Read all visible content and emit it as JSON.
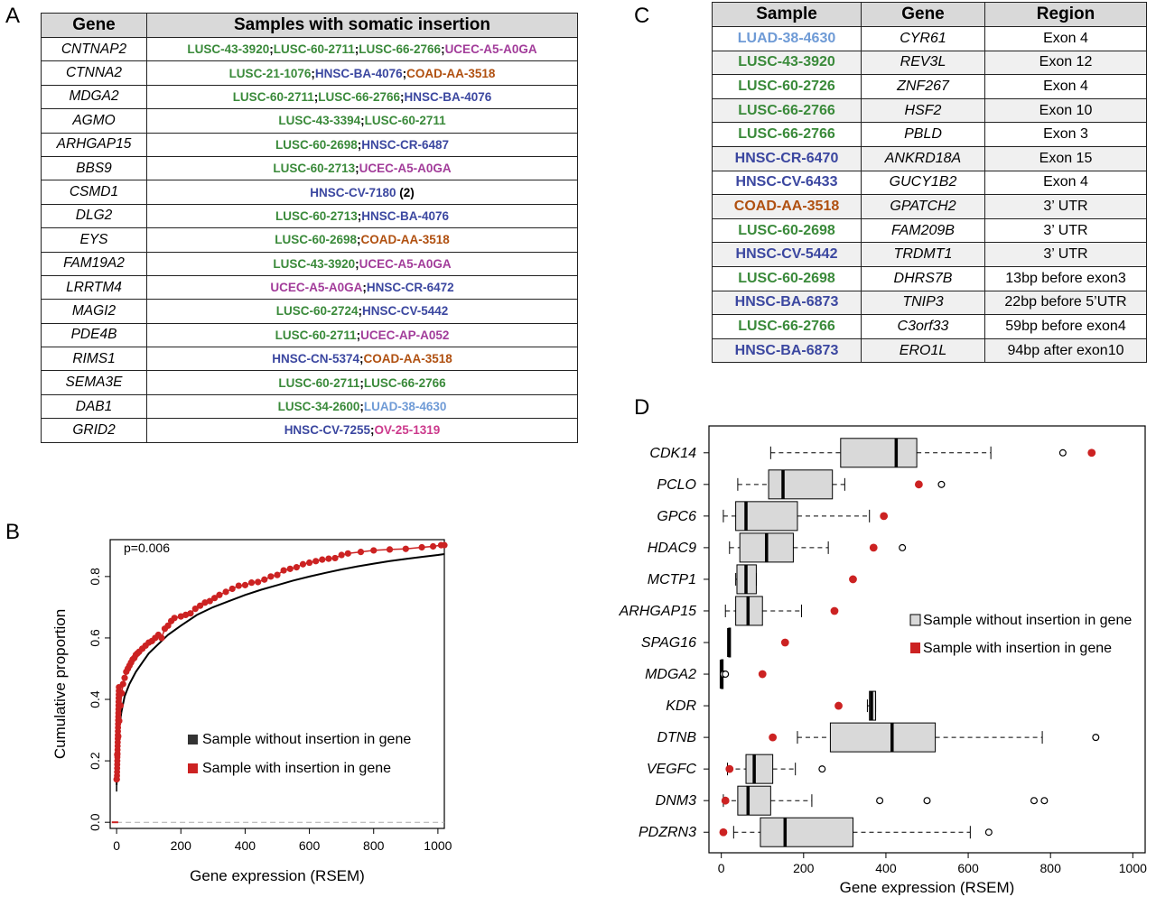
{
  "panel_labels": {
    "a": "A",
    "b": "B",
    "c": "C",
    "d": "D"
  },
  "colors": {
    "lusc": "#3a8a3a",
    "hnsc": "#3b47a0",
    "ucec": "#a23c9a",
    "coad": "#b05010",
    "luad": "#6f9bd6",
    "ov": "#cc3a8c",
    "insertion": "#cc2222",
    "box_fill": "#d9d9d9"
  },
  "table_a": {
    "headers": [
      "Gene",
      "Samples with somatic insertion"
    ],
    "rows": [
      {
        "gene": "CNTNAP2",
        "samples": [
          {
            "t": "LUSC-43-3920",
            "c": "lusc"
          },
          {
            "t": "LUSC-60-2711",
            "c": "lusc"
          },
          {
            "t": "LUSC-66-2766",
            "c": "lusc"
          },
          {
            "t": "UCEC-A5-A0GA",
            "c": "ucec"
          }
        ]
      },
      {
        "gene": "CTNNA2",
        "samples": [
          {
            "t": "LUSC-21-1076",
            "c": "lusc"
          },
          {
            "t": "HNSC-BA-4076",
            "c": "hnsc"
          },
          {
            "t": "COAD-AA-3518",
            "c": "coad"
          }
        ]
      },
      {
        "gene": "MDGA2",
        "samples": [
          {
            "t": "LUSC-60-2711",
            "c": "lusc"
          },
          {
            "t": "LUSC-66-2766",
            "c": "lusc"
          },
          {
            "t": "HNSC-BA-4076",
            "c": "hnsc"
          }
        ]
      },
      {
        "gene": "AGMO",
        "samples": [
          {
            "t": "LUSC-43-3394",
            "c": "lusc"
          },
          {
            "t": "LUSC-60-2711",
            "c": "lusc"
          }
        ]
      },
      {
        "gene": "ARHGAP15",
        "samples": [
          {
            "t": "LUSC-60-2698",
            "c": "lusc"
          },
          {
            "t": "HNSC-CR-6487",
            "c": "hnsc"
          }
        ]
      },
      {
        "gene": "BBS9",
        "samples": [
          {
            "t": "LUSC-60-2713",
            "c": "lusc"
          },
          {
            "t": "UCEC-A5-A0GA",
            "c": "ucec"
          }
        ]
      },
      {
        "gene": "CSMD1",
        "samples": [
          {
            "t": "HNSC-CV-7180",
            "c": "hnsc",
            "suffix": " (2)"
          }
        ]
      },
      {
        "gene": "DLG2",
        "samples": [
          {
            "t": "LUSC-60-2713",
            "c": "lusc"
          },
          {
            "t": "HNSC-BA-4076",
            "c": "hnsc"
          }
        ]
      },
      {
        "gene": "EYS",
        "samples": [
          {
            "t": "LUSC-60-2698",
            "c": "lusc"
          },
          {
            "t": "COAD-AA-3518",
            "c": "coad"
          }
        ]
      },
      {
        "gene": "FAM19A2",
        "samples": [
          {
            "t": "LUSC-43-3920",
            "c": "lusc"
          },
          {
            "t": "UCEC-A5-A0GA",
            "c": "ucec"
          }
        ]
      },
      {
        "gene": "LRRTM4",
        "samples": [
          {
            "t": "UCEC-A5-A0GA",
            "c": "ucec"
          },
          {
            "t": "HNSC-CR-6472",
            "c": "hnsc"
          }
        ]
      },
      {
        "gene": "MAGI2",
        "samples": [
          {
            "t": "LUSC-60-2724",
            "c": "lusc"
          },
          {
            "t": "HNSC-CV-5442",
            "c": "hnsc"
          }
        ]
      },
      {
        "gene": "PDE4B",
        "samples": [
          {
            "t": "LUSC-60-2711",
            "c": "lusc"
          },
          {
            "t": "UCEC-AP-A052",
            "c": "ucec"
          }
        ]
      },
      {
        "gene": "RIMS1",
        "samples": [
          {
            "t": "HNSC-CN-5374",
            "c": "hnsc"
          },
          {
            "t": "COAD-AA-3518",
            "c": "coad"
          }
        ]
      },
      {
        "gene": "SEMA3E",
        "samples": [
          {
            "t": "LUSC-60-2711",
            "c": "lusc"
          },
          {
            "t": "LUSC-66-2766",
            "c": "lusc"
          }
        ]
      },
      {
        "gene": "DAB1",
        "samples": [
          {
            "t": "LUSC-34-2600",
            "c": "lusc"
          },
          {
            "t": "LUAD-38-4630",
            "c": "luad"
          }
        ]
      },
      {
        "gene": "GRID2",
        "samples": [
          {
            "t": "HNSC-CV-7255",
            "c": "hnsc"
          },
          {
            "t": "OV-25-1319",
            "c": "ov"
          }
        ]
      }
    ]
  },
  "table_c": {
    "headers": [
      "Sample",
      "Gene",
      "Region"
    ],
    "rows": [
      {
        "sample": "LUAD-38-4630",
        "c": "luad",
        "gene": "CYR61",
        "region": "Exon 4"
      },
      {
        "sample": "LUSC-43-3920",
        "c": "lusc",
        "gene": "REV3L",
        "region": "Exon 12"
      },
      {
        "sample": "LUSC-60-2726",
        "c": "lusc",
        "gene": "ZNF267",
        "region": "Exon 4"
      },
      {
        "sample": "LUSC-66-2766",
        "c": "lusc",
        "gene": "HSF2",
        "region": "Exon 10"
      },
      {
        "sample": "LUSC-66-2766",
        "c": "lusc",
        "gene": "PBLD",
        "region": "Exon 3"
      },
      {
        "sample": "HNSC-CR-6470",
        "c": "hnsc",
        "gene": "ANKRD18A",
        "region": "Exon 15"
      },
      {
        "sample": "HNSC-CV-6433",
        "c": "hnsc",
        "gene": "GUCY1B2",
        "region": "Exon 4"
      },
      {
        "sample": "COAD-AA-3518",
        "c": "coad",
        "gene": "GPATCH2",
        "region": "3’ UTR"
      },
      {
        "sample": "LUSC-60-2698",
        "c": "lusc",
        "gene": "FAM209B",
        "region": "3’ UTR"
      },
      {
        "sample": "HNSC-CV-5442",
        "c": "hnsc",
        "gene": "TRDMT1",
        "region": "3’ UTR"
      },
      {
        "sample": "LUSC-60-2698",
        "c": "lusc",
        "gene": "DHRS7B",
        "region": "13bp before exon3"
      },
      {
        "sample": "HNSC-BA-6873",
        "c": "hnsc",
        "gene": "TNIP3",
        "region": "22bp before 5’UTR"
      },
      {
        "sample": "LUSC-66-2766",
        "c": "lusc",
        "gene": "C3orf33",
        "region": "59bp before exon4"
      },
      {
        "sample": "HNSC-BA-6873",
        "c": "hnsc",
        "gene": "ERO1L",
        "region": "94bp after exon10"
      }
    ]
  },
  "chart_data": [
    {
      "type": "line",
      "panel": "B",
      "title": "",
      "annotation": "p=0.006",
      "xlabel": "Gene expression (RSEM)",
      "ylabel": "Cumulative proportion",
      "xlim": [
        -20,
        1020
      ],
      "ylim": [
        -0.02,
        0.92
      ],
      "xticks": [
        "0",
        "200",
        "400",
        "600",
        "800",
        "1000"
      ],
      "yticks": [
        "0.0",
        "0.2",
        "0.4",
        "0.6",
        "0.8"
      ],
      "legend": [
        {
          "label": "Sample without insertion in gene",
          "color": "#333333"
        },
        {
          "label": "Sample with insertion in gene",
          "color": "#cc2222"
        }
      ],
      "legend_placement": "center-right",
      "series": [
        {
          "name": "Sample without insertion in gene",
          "color": "#000000",
          "x": [
            0,
            3,
            8,
            15,
            25,
            40,
            60,
            80,
            100,
            130,
            160,
            200,
            250,
            300,
            350,
            400,
            450,
            500,
            550,
            600,
            650,
            700,
            750,
            800,
            850,
            900,
            950,
            1000,
            1020
          ],
          "y": [
            0.12,
            0.25,
            0.31,
            0.36,
            0.41,
            0.45,
            0.49,
            0.52,
            0.55,
            0.58,
            0.61,
            0.64,
            0.675,
            0.7,
            0.72,
            0.74,
            0.757,
            0.772,
            0.787,
            0.8,
            0.812,
            0.823,
            0.833,
            0.842,
            0.85,
            0.857,
            0.864,
            0.87,
            0.873
          ]
        },
        {
          "name": "Sample with insertion in gene",
          "color": "#cc2222",
          "x": [
            0,
            2,
            5,
            8,
            12,
            16,
            20,
            25,
            30,
            35,
            40,
            45,
            50,
            55,
            60,
            65,
            70,
            80,
            90,
            100,
            110,
            120,
            130,
            140,
            150,
            160,
            170,
            180,
            200,
            215,
            230,
            245,
            260,
            275,
            290,
            305,
            320,
            340,
            360,
            380,
            400,
            420,
            440,
            460,
            480,
            500,
            520,
            540,
            560,
            580,
            600,
            620,
            640,
            660,
            680,
            700,
            720,
            760,
            800,
            850,
            900,
            950,
            985,
            1010,
            1020
          ],
          "y": [
            0.14,
            0.22,
            0.28,
            0.33,
            0.38,
            0.42,
            0.45,
            0.47,
            0.49,
            0.5,
            0.51,
            0.52,
            0.53,
            0.535,
            0.545,
            0.55,
            0.555,
            0.565,
            0.575,
            0.585,
            0.59,
            0.6,
            0.61,
            0.6,
            0.63,
            0.64,
            0.655,
            0.665,
            0.67,
            0.675,
            0.68,
            0.695,
            0.705,
            0.715,
            0.72,
            0.73,
            0.74,
            0.75,
            0.76,
            0.77,
            0.772,
            0.78,
            0.782,
            0.79,
            0.8,
            0.805,
            0.82,
            0.825,
            0.83,
            0.84,
            0.845,
            0.85,
            0.855,
            0.858,
            0.86,
            0.87,
            0.875,
            0.88,
            0.885,
            0.888,
            0.89,
            0.895,
            0.898,
            0.902,
            0.902
          ]
        },
        {
          "name": "reference",
          "color": "#aaaaaa",
          "dashed": true,
          "x": [
            0,
            1020
          ],
          "y": [
            0.0,
            0.0
          ]
        }
      ]
    },
    {
      "type": "boxplot",
      "panel": "D",
      "title": "",
      "xlabel": "Gene expression (RSEM)",
      "ylabel": "",
      "xlim": [
        -30,
        1030
      ],
      "xticks": [
        "0",
        "200",
        "400",
        "600",
        "800",
        "1000"
      ],
      "legend": [
        {
          "label": "Sample without insertion in gene",
          "color": "#d9d9d9"
        },
        {
          "label": "Sample with insertion in gene",
          "color": "#cc2222"
        }
      ],
      "legend_placement": "center-right",
      "genes": [
        {
          "gene": "CDK14",
          "wlo": 120,
          "q1": 290,
          "med": 425,
          "q3": 475,
          "whi": 655,
          "outliers": [
            830
          ],
          "insertion": [
            900
          ]
        },
        {
          "gene": "PCLO",
          "wlo": 40,
          "q1": 115,
          "med": 150,
          "q3": 270,
          "whi": 300,
          "outliers": [
            535
          ],
          "insertion": [
            480
          ]
        },
        {
          "gene": "GPC6",
          "wlo": 5,
          "q1": 35,
          "med": 60,
          "q3": 185,
          "whi": 360,
          "outliers": [],
          "insertion": [
            395
          ]
        },
        {
          "gene": "HDAC9",
          "wlo": 20,
          "q1": 45,
          "med": 110,
          "q3": 175,
          "whi": 260,
          "outliers": [
            440
          ],
          "insertion": [
            370
          ]
        },
        {
          "gene": "MCTP1",
          "wlo": 35,
          "q1": 38,
          "med": 60,
          "q3": 85,
          "whi": 85,
          "outliers": [],
          "insertion": [
            320
          ]
        },
        {
          "gene": "ARHGAP15",
          "wlo": 10,
          "q1": 35,
          "med": 65,
          "q3": 100,
          "whi": 195,
          "outliers": [],
          "insertion": [
            275
          ]
        },
        {
          "gene": "SPAG16",
          "wlo": 18,
          "q1": 18,
          "med": 18,
          "q3": 18,
          "whi": 18,
          "outliers": [],
          "insertion": [
            155
          ]
        },
        {
          "gene": "MDGA2",
          "wlo": 0,
          "q1": 0,
          "med": 0,
          "q3": 0,
          "whi": 0,
          "outliers": [
            5,
            10
          ],
          "insertion": [
            100
          ]
        },
        {
          "gene": "KDR",
          "wlo": 355,
          "q1": 360,
          "med": 365,
          "q3": 375,
          "whi": 375,
          "outliers": [],
          "insertion": [
            285
          ]
        },
        {
          "gene": "DTNB",
          "wlo": 185,
          "q1": 265,
          "med": 415,
          "q3": 520,
          "whi": 780,
          "outliers": [
            910
          ],
          "insertion": [
            125
          ]
        },
        {
          "gene": "VEGFC",
          "wlo": 15,
          "q1": 60,
          "med": 80,
          "q3": 125,
          "whi": 180,
          "outliers": [
            245
          ],
          "insertion": [
            20
          ]
        },
        {
          "gene": "DNM3",
          "wlo": 5,
          "q1": 40,
          "med": 65,
          "q3": 120,
          "whi": 220,
          "outliers": [
            385,
            500,
            760,
            785
          ],
          "insertion": [
            10
          ]
        },
        {
          "gene": "PDZRN3",
          "wlo": 30,
          "q1": 95,
          "med": 155,
          "q3": 320,
          "whi": 605,
          "outliers": [
            650
          ],
          "insertion": [
            5
          ]
        }
      ]
    }
  ]
}
